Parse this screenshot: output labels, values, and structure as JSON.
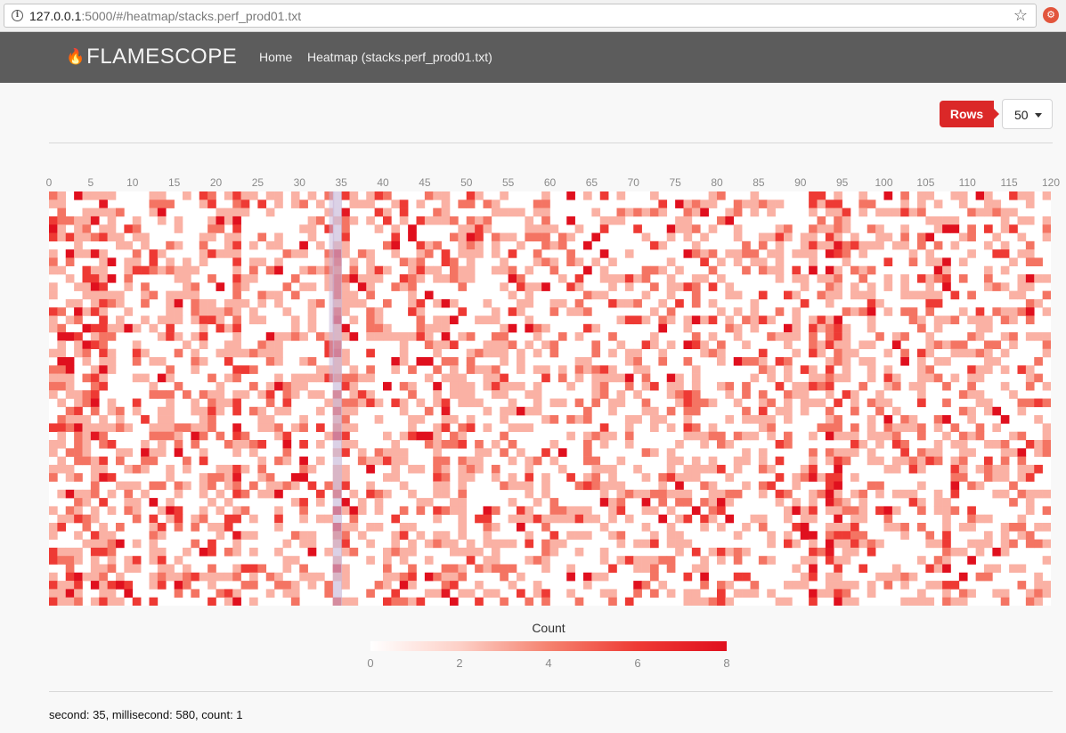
{
  "browser": {
    "url_host": "127.0.0.1",
    "url_rest": ":5000/#/heatmap/stacks.perf_prod01.txt",
    "info_icon": "i",
    "star_icon": "☆",
    "ext_icon": "⚙"
  },
  "navbar": {
    "brand": "FLAMESCOPE",
    "flame_icon": "🔥",
    "links": [
      "Home",
      "Heatmap (stacks.perf_prod01.txt)"
    ]
  },
  "controls": {
    "rows_label": "Rows",
    "rows_value": "50"
  },
  "heatmap": {
    "x_ticks": [
      "0",
      "5",
      "10",
      "15",
      "20",
      "25",
      "30",
      "35",
      "40",
      "45",
      "50",
      "55",
      "60",
      "65",
      "70",
      "75",
      "80",
      "85",
      "90",
      "95",
      "100",
      "105",
      "110",
      "115",
      "120"
    ],
    "columns": 120,
    "rows": 50,
    "highlight_column": 34,
    "highlight_color": "#c8b8d8",
    "color_scale": [
      "#ffffff",
      "#fdd0c7",
      "#f5826f",
      "#ee3a34",
      "#e0101e"
    ],
    "count_max": 8
  },
  "legend": {
    "title": "Count",
    "ticks": [
      "0",
      "2",
      "4",
      "6",
      "8"
    ]
  },
  "status": "second: 35, millisecond: 580, count: 1"
}
